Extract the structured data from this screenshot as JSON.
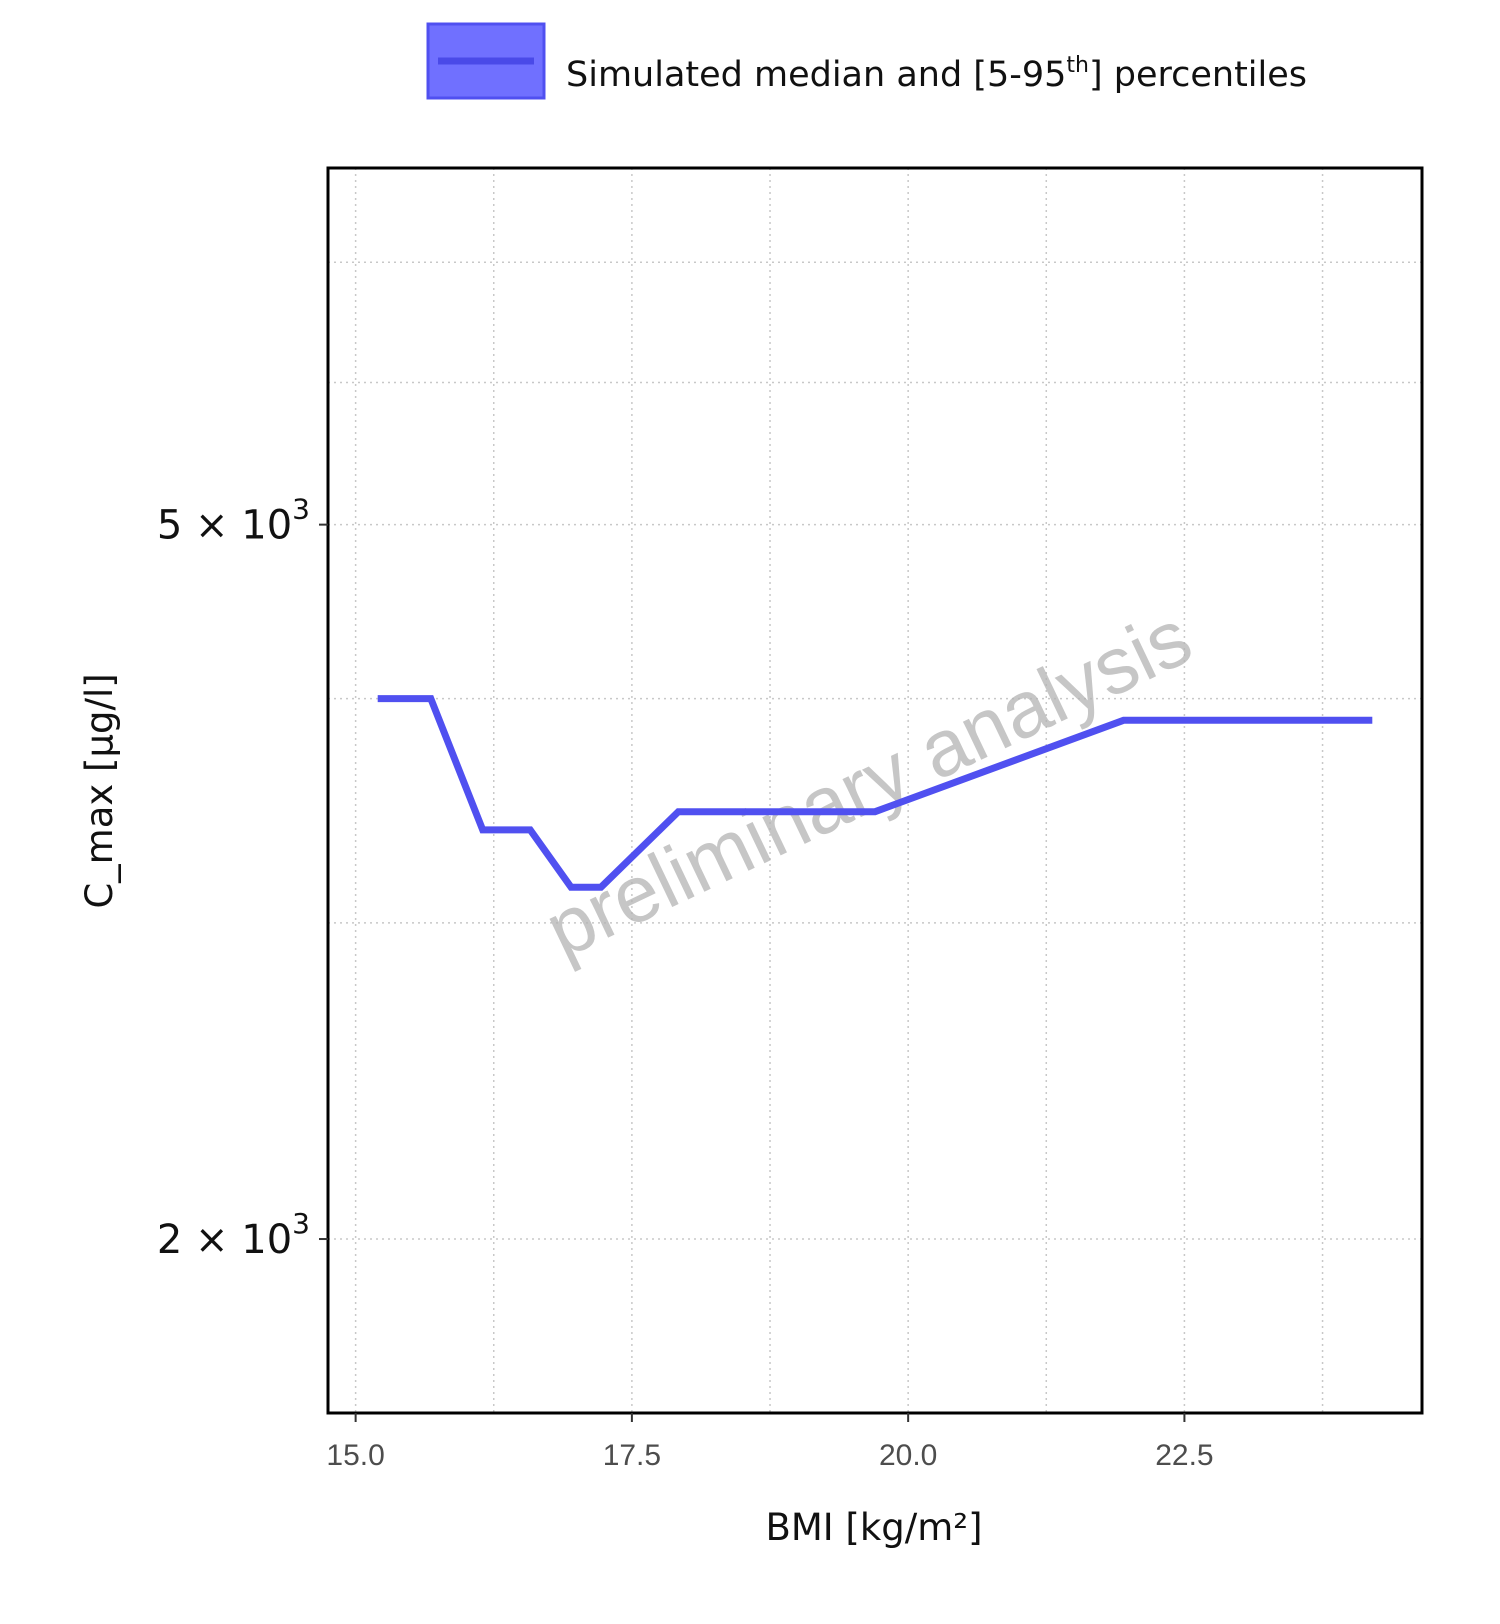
{
  "chart_data": {
    "type": "line",
    "xlabel": "BMI [kg/m²]",
    "ylabel": "C_max [µg/l]",
    "x_ticks": [
      15.0,
      17.5,
      20.0,
      22.5
    ],
    "x_tick_labels": [
      "15.0",
      "17.5",
      "20.0",
      "22.5"
    ],
    "xlim": [
      14.75,
      24.65
    ],
    "y_scale": "log",
    "ylim": [
      1600,
      7900
    ],
    "y_ticks": [
      {
        "value": 2000,
        "mantissa": "2",
        "times": "×",
        "base": "10",
        "exponent": "3"
      },
      {
        "value": 5000,
        "mantissa": "5",
        "times": "×",
        "base": "10",
        "exponent": "3"
      }
    ],
    "y_minor_gridlines": [
      3000,
      4000,
      6000,
      7000
    ],
    "x_minor_gridlines": [
      16.25,
      18.75,
      21.25,
      23.75
    ],
    "grid": true,
    "legend": {
      "position": "top",
      "label": "Simulated median and [5-95",
      "label_sup": "th",
      "label_end": "] percentiles"
    },
    "watermark": "preliminary analysis",
    "series": [
      {
        "color": "#5050f0",
        "x": [
          15.2,
          15.68,
          16.15,
          16.58,
          16.95,
          17.22,
          17.92,
          19.7,
          21.95,
          24.2
        ],
        "y": [
          4000,
          4000,
          3380,
          3380,
          3140,
          3140,
          3460,
          3460,
          3890,
          3890
        ]
      }
    ],
    "colors": {
      "series": "#5050f0",
      "legend_fill": "#7070ff",
      "grid": "#c8c8c8",
      "axis": "#000000"
    }
  }
}
